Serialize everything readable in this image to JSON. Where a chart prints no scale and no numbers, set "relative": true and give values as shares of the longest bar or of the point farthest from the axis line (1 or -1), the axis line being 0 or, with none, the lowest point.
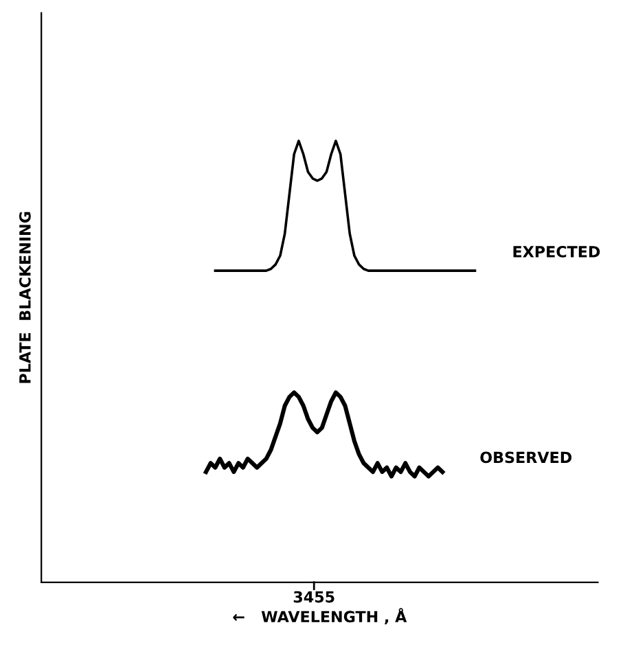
{
  "chart_data": {
    "type": "line",
    "relative": true,
    "ylabel": "PLATE  BLACKENING",
    "xlabel": "←   WAVELENGTH , Å",
    "annotations": [
      "3455"
    ],
    "tick_labels": false,
    "grid": false,
    "legend": false,
    "categories": [
      null,
      null,
      null,
      null,
      null,
      null,
      null,
      null,
      null,
      null,
      null,
      null,
      null,
      null,
      null,
      null,
      null,
      null,
      null,
      null,
      null,
      null,
      null,
      null,
      null,
      null,
      null,
      null,
      null,
      null,
      null,
      null,
      null,
      null,
      null,
      null,
      null,
      null,
      null,
      null,
      null,
      null,
      null,
      null,
      null,
      null,
      null,
      null,
      null,
      null,
      null,
      null,
      null,
      null,
      null,
      null,
      null,
      null,
      null,
      null,
      null,
      null,
      null,
      null,
      null,
      null,
      null,
      null,
      null,
      null,
      null,
      null,
      null,
      null,
      null,
      null,
      null,
      null,
      null,
      null,
      null,
      null,
      null,
      null,
      null,
      null,
      null,
      null,
      null,
      null,
      null,
      null,
      null,
      null,
      null,
      null,
      null,
      null,
      null,
      null,
      null,
      null,
      null,
      null,
      null,
      null,
      null,
      null,
      null,
      null,
      null,
      null,
      null,
      null,
      null,
      null,
      null,
      null,
      null,
      null
    ],
    "series": [
      {
        "name": "EXPECTED",
        "color": "#000000",
        "values": [
          null,
          null,
          null,
          null,
          null,
          null,
          null,
          null,
          null,
          null,
          null,
          null,
          null,
          null,
          null,
          null,
          null,
          null,
          null,
          null,
          null,
          null,
          null,
          null,
          null,
          null,
          null,
          null,
          null,
          null,
          null,
          null,
          null,
          null,
          null,
          null,
          null,
          0.706,
          0.706,
          0.706,
          0.706,
          0.706,
          0.706,
          0.706,
          0.706,
          0.706,
          0.706,
          0.706,
          0.706,
          0.71,
          0.72,
          0.74,
          0.79,
          0.88,
          0.97,
          1.0,
          0.97,
          0.93,
          0.915,
          0.91,
          0.915,
          0.93,
          0.97,
          1.0,
          0.97,
          0.88,
          0.79,
          0.74,
          0.72,
          0.71,
          0.706,
          0.706,
          0.706,
          0.706,
          0.706,
          0.706,
          0.706,
          0.706,
          0.706,
          0.706,
          0.706,
          0.706,
          0.706,
          0.706,
          0.706,
          0.706,
          0.706,
          0.706,
          0.706,
          0.706,
          0.706,
          0.706,
          0.706,
          0.706,
          null,
          null,
          null,
          null,
          null,
          null,
          null,
          null,
          null,
          null,
          null,
          null,
          null,
          null,
          null,
          null,
          null,
          null,
          null,
          null,
          null,
          null,
          null,
          null,
          null,
          null
        ]
      },
      {
        "name": "OBSERVED",
        "color": "#000000",
        "values": [
          null,
          null,
          null,
          null,
          null,
          null,
          null,
          null,
          null,
          null,
          null,
          null,
          null,
          null,
          null,
          null,
          null,
          null,
          null,
          null,
          null,
          null,
          null,
          null,
          null,
          null,
          null,
          null,
          null,
          null,
          null,
          null,
          null,
          null,
          null,
          0.25,
          0.27,
          0.26,
          0.28,
          0.26,
          0.27,
          0.25,
          0.27,
          0.26,
          0.28,
          0.27,
          0.26,
          0.27,
          0.28,
          0.3,
          0.33,
          0.36,
          0.4,
          0.42,
          0.43,
          0.42,
          0.4,
          0.37,
          0.35,
          0.34,
          0.35,
          0.38,
          0.41,
          0.43,
          0.42,
          0.4,
          0.36,
          0.32,
          0.29,
          0.27,
          0.26,
          0.25,
          0.27,
          0.25,
          0.26,
          0.24,
          0.26,
          0.25,
          0.27,
          0.25,
          0.24,
          0.26,
          0.25,
          0.24,
          0.25,
          0.26,
          0.25,
          null,
          null,
          null,
          null,
          null,
          null,
          null,
          null,
          null,
          null,
          null,
          null,
          null,
          null,
          null,
          null,
          null,
          null,
          null,
          null,
          null,
          null,
          null,
          null,
          null,
          null,
          null,
          null,
          null,
          null,
          null,
          null,
          null
        ]
      }
    ]
  }
}
